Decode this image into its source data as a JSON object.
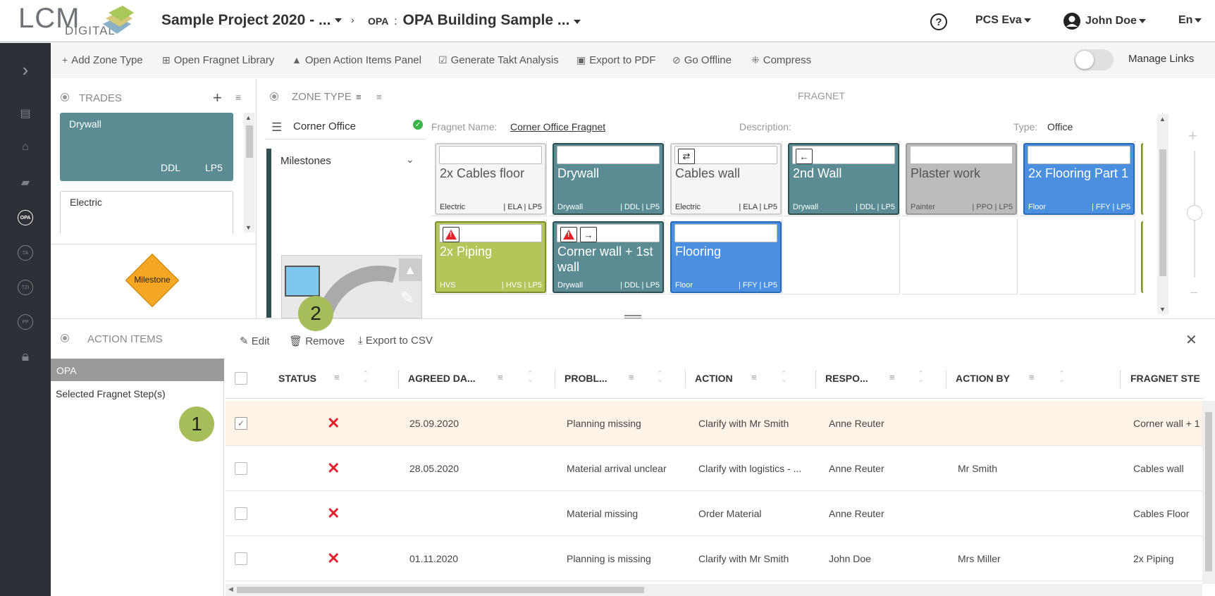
{
  "header": {
    "logo_main": "LCM",
    "logo_sub": "DIGITAL",
    "project_title": "Sample Project 2020 - ...",
    "breadcrumb_prefix": "OPA",
    "breadcrumb_sep": ":",
    "breadcrumb_title": "OPA Building Sample ...",
    "company": "PCS Eva",
    "user": "John Doe",
    "language": "En"
  },
  "toolbar": {
    "add_zone_type": "Add Zone Type",
    "open_fragnet_library": "Open Fragnet Library",
    "open_action_items_panel": "Open Action Items Panel",
    "generate_takt_analysis": "Generate Takt Analysis",
    "export_to_pdf": "Export to PDF",
    "go_offline": "Go Offline",
    "compress": "Compress",
    "manage_links": "Manage Links"
  },
  "sidebar": {
    "items": [
      "OPA",
      "TA",
      "TZI",
      "PP"
    ]
  },
  "trades": {
    "title": "TRADES",
    "cards": [
      {
        "name": "Drywall",
        "code": "DDL",
        "level": "LP5",
        "color": "#5b8c94"
      },
      {
        "name": "Electric"
      }
    ],
    "milestone": "Milestone"
  },
  "zone_type": {
    "title": "ZONE TYPE",
    "selected": "Corner Office",
    "milestones_label": "Milestones"
  },
  "fragnet": {
    "title": "FRAGNET",
    "name_label": "Fragnet Name:",
    "name_value": "Corner Office Fragnet",
    "description_label": "Description:",
    "type_label": "Type:",
    "type_value": "Office",
    "steps": [
      {
        "title": "2x Cables floor",
        "trade": "Electric",
        "codes": "| ELA | LP5"
      },
      {
        "title": "Drywall",
        "trade": "Drywall",
        "codes": "| DDL | LP5"
      },
      {
        "title": "Cables wall",
        "trade": "Electric",
        "codes": "| ELA | LP5"
      },
      {
        "title": "2nd Wall",
        "trade": "Drywall",
        "codes": "| DDL | LP5"
      },
      {
        "title": "Plaster work",
        "trade": "Painter",
        "codes": "| PPO | LP5"
      },
      {
        "title": "2x Flooring Part 1",
        "trade": "Floor",
        "codes": "| FFY | LP5"
      },
      {
        "title": "2x Piping",
        "trade": "HVS",
        "codes": "| HVS | LP5"
      },
      {
        "title": "Corner wall + 1st wall",
        "trade": "Drywall",
        "codes": "| DDL | LP5"
      },
      {
        "title": "Flooring",
        "trade": "Floor",
        "codes": "| FFY | LP5"
      }
    ],
    "colors": {
      "electric": "#f5f5f5",
      "drywall": "#5b8c94",
      "painter": "#bcbcbc",
      "floor": "#4a8fe0",
      "hvs": "#b2c65a"
    }
  },
  "action_items": {
    "title": "ACTION ITEMS",
    "edit": "Edit",
    "remove": "Remove",
    "export_csv": "Export to CSV",
    "filter_header": "OPA",
    "filter_item": "Selected Fragnet Step(s)",
    "columns": [
      "STATUS",
      "AGREED DA...",
      "PROBL...",
      "ACTION",
      "RESPO...",
      "ACTION BY",
      "FRAGNET STE"
    ],
    "rows": [
      {
        "checked": true,
        "date": "25.09.2020",
        "problem": "Planning missing",
        "action": "Clarify with Mr Smith",
        "responsible": "Anne Reuter",
        "action_by": "",
        "fragnet_step": "Corner wall + 1"
      },
      {
        "checked": false,
        "date": "28.05.2020",
        "problem": "Material arrival unclear",
        "action": "Clarify with logistics - ...",
        "responsible": "Anne Reuter",
        "action_by": "Mr Smith",
        "fragnet_step": "Cables wall"
      },
      {
        "checked": false,
        "date": "",
        "problem": "Material missing",
        "action": "Order Material",
        "responsible": "Anne Reuter",
        "action_by": "",
        "fragnet_step": "Cables Floor"
      },
      {
        "checked": false,
        "date": "01.11.2020",
        "problem": "Planning is missing",
        "action": "Clarify with Mr Smith",
        "responsible": "John Doe",
        "action_by": "Mrs Miller",
        "fragnet_step": "2x Piping"
      }
    ]
  },
  "badges": [
    "1",
    "2"
  ]
}
